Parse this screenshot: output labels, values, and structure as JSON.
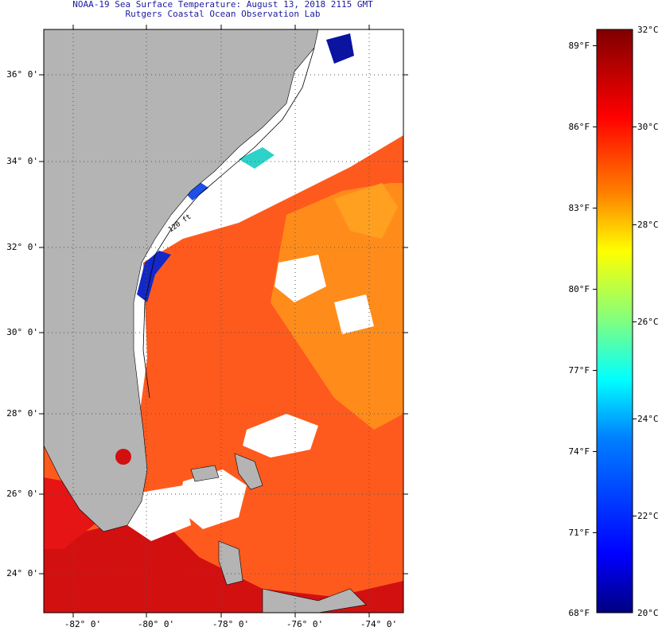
{
  "title": {
    "line1": "NOAA-19 Sea Surface Temperature:  August 13, 2018 2115 GMT",
    "line2": "Rutgers Coastal Ocean Observation Lab"
  },
  "map": {
    "lat_labels": [
      "36° 0'",
      "34° 0'",
      "32° 0'",
      "30° 0'",
      "28° 0'",
      "26° 0'",
      "24° 0'"
    ],
    "lon_labels": [
      "-82° 0'",
      "-80° 0'",
      "-78° 0'",
      "-76° 0'",
      "-74° 0'"
    ],
    "land_color": "#b4b4b4",
    "no_data_color": "#ffffff",
    "depth_contour_label": "120 ft"
  },
  "colorbar": {
    "fahrenheit_labels": [
      "89°F",
      "86°F",
      "83°F",
      "80°F",
      "77°F",
      "74°F",
      "71°F",
      "68°F"
    ],
    "celsius_labels": [
      "32°C",
      "30°C",
      "28°C",
      "26°C",
      "24°C",
      "22°C",
      "20°C"
    ],
    "min_c": 20,
    "max_c": 32,
    "colors": [
      "#00007f",
      "#0000ff",
      "#0080ff",
      "#00ffff",
      "#80ff80",
      "#ffff00",
      "#ff8000",
      "#ff0000",
      "#7f0000"
    ]
  }
}
